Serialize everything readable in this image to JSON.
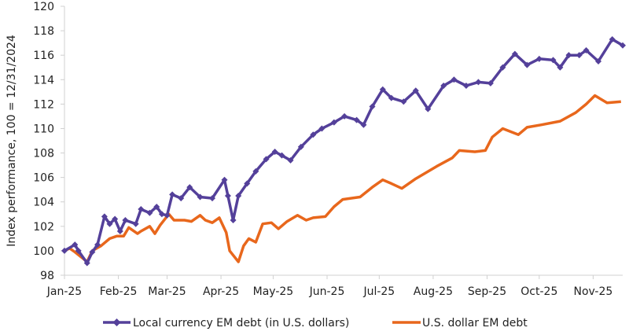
{
  "chart_data": {
    "type": "line",
    "title": "",
    "xlabel": "",
    "ylabel": "Index performance, 100 = 12/31/2024",
    "ylim": [
      98,
      120
    ],
    "yticks": [
      98,
      100,
      102,
      104,
      106,
      108,
      110,
      112,
      114,
      116,
      118,
      120
    ],
    "xlim": [
      "2025-01-01",
      "2025-11-18"
    ],
    "xticks": [
      {
        "date": "2025-01-01",
        "label": "Jan-25"
      },
      {
        "date": "2025-02-01",
        "label": "Feb-25"
      },
      {
        "date": "2025-03-01",
        "label": "Mar-25"
      },
      {
        "date": "2025-04-01",
        "label": "Apr-25"
      },
      {
        "date": "2025-05-01",
        "label": "May-25"
      },
      {
        "date": "2025-06-01",
        "label": "Jun-25"
      },
      {
        "date": "2025-07-01",
        "label": "Jul-25"
      },
      {
        "date": "2025-08-01",
        "label": "Aug-25"
      },
      {
        "date": "2025-09-01",
        "label": "Sep-25"
      },
      {
        "date": "2025-10-01",
        "label": "Oct-25"
      },
      {
        "date": "2025-11-01",
        "label": "Nov-25"
      }
    ],
    "grid": false,
    "legend_position": "bottom",
    "series": [
      {
        "name": "Local currency EM debt (in U.S. dollars)",
        "color": "#54409a",
        "marker": "diamond",
        "x": [
          "2025-01-01",
          "2025-01-07",
          "2025-01-09",
          "2025-01-14",
          "2025-01-17",
          "2025-01-20",
          "2025-01-24",
          "2025-01-27",
          "2025-01-30",
          "2025-02-02",
          "2025-02-05",
          "2025-02-11",
          "2025-02-14",
          "2025-02-19",
          "2025-02-23",
          "2025-02-26",
          "2025-03-01",
          "2025-03-04",
          "2025-03-09",
          "2025-03-14",
          "2025-03-20",
          "2025-03-27",
          "2025-04-03",
          "2025-04-05",
          "2025-04-08",
          "2025-04-11",
          "2025-04-16",
          "2025-04-21",
          "2025-04-27",
          "2025-05-02",
          "2025-05-06",
          "2025-05-11",
          "2025-05-17",
          "2025-05-24",
          "2025-05-29",
          "2025-06-05",
          "2025-06-11",
          "2025-06-18",
          "2025-06-22",
          "2025-06-27",
          "2025-07-03",
          "2025-07-08",
          "2025-07-15",
          "2025-07-22",
          "2025-07-29",
          "2025-08-07",
          "2025-08-13",
          "2025-08-20",
          "2025-08-27",
          "2025-09-03",
          "2025-09-10",
          "2025-09-17",
          "2025-09-24",
          "2025-10-01",
          "2025-10-09",
          "2025-10-13",
          "2025-10-18",
          "2025-10-24",
          "2025-10-28",
          "2025-11-04",
          "2025-11-12",
          "2025-11-18"
        ],
        "values": [
          100.0,
          100.5,
          100.0,
          99.0,
          99.9,
          100.5,
          102.8,
          102.2,
          102.6,
          101.6,
          102.5,
          102.2,
          103.4,
          103.1,
          103.6,
          103.0,
          102.9,
          104.6,
          104.3,
          105.2,
          104.4,
          104.3,
          105.8,
          104.5,
          102.5,
          104.5,
          105.5,
          106.5,
          107.5,
          108.1,
          107.8,
          107.4,
          108.5,
          109.5,
          110.0,
          110.5,
          111.0,
          110.7,
          110.3,
          111.8,
          113.2,
          112.5,
          112.2,
          113.1,
          111.6,
          113.5,
          114.0,
          113.5,
          113.8,
          113.7,
          115.0,
          116.1,
          115.2,
          115.7,
          115.6,
          115.0,
          116.0,
          116.0,
          116.4,
          115.5,
          117.3,
          116.8
        ]
      },
      {
        "name": "U.S. dollar EM debt",
        "color": "#e8671c",
        "marker": "none",
        "x": [
          "2025-01-01",
          "2025-01-04",
          "2025-01-07",
          "2025-01-14",
          "2025-01-17",
          "2025-01-22",
          "2025-01-27",
          "2025-01-31",
          "2025-02-04",
          "2025-02-07",
          "2025-02-12",
          "2025-02-14",
          "2025-02-19",
          "2025-02-22",
          "2025-02-25",
          "2025-03-02",
          "2025-03-05",
          "2025-03-11",
          "2025-03-15",
          "2025-03-20",
          "2025-03-23",
          "2025-03-27",
          "2025-03-31",
          "2025-04-04",
          "2025-04-06",
          "2025-04-11",
          "2025-04-14",
          "2025-04-17",
          "2025-04-21",
          "2025-04-25",
          "2025-04-30",
          "2025-05-04",
          "2025-05-09",
          "2025-05-15",
          "2025-05-20",
          "2025-05-24",
          "2025-05-31",
          "2025-06-05",
          "2025-06-10",
          "2025-06-20",
          "2025-06-27",
          "2025-07-03",
          "2025-07-08",
          "2025-07-14",
          "2025-07-22",
          "2025-08-03",
          "2025-08-12",
          "2025-08-16",
          "2025-08-25",
          "2025-08-31",
          "2025-09-04",
          "2025-09-10",
          "2025-09-19",
          "2025-09-24",
          "2025-10-02",
          "2025-10-13",
          "2025-10-22",
          "2025-10-28",
          "2025-11-02",
          "2025-11-09",
          "2025-11-17"
        ],
        "values": [
          100.0,
          100.2,
          99.9,
          99.1,
          100.0,
          100.4,
          101.0,
          101.2,
          101.2,
          101.9,
          101.4,
          101.6,
          102.0,
          101.4,
          102.1,
          103.0,
          102.5,
          102.5,
          102.4,
          102.9,
          102.5,
          102.3,
          102.7,
          101.5,
          100.0,
          99.1,
          100.4,
          101.0,
          100.7,
          102.2,
          102.3,
          101.8,
          102.4,
          102.9,
          102.5,
          102.7,
          102.8,
          103.6,
          104.2,
          104.4,
          105.2,
          105.8,
          105.5,
          105.1,
          105.9,
          106.9,
          107.6,
          108.2,
          108.1,
          108.2,
          109.3,
          110.0,
          109.5,
          110.1,
          110.3,
          110.6,
          111.3,
          112.0,
          112.7,
          112.1,
          112.2
        ]
      }
    ]
  }
}
